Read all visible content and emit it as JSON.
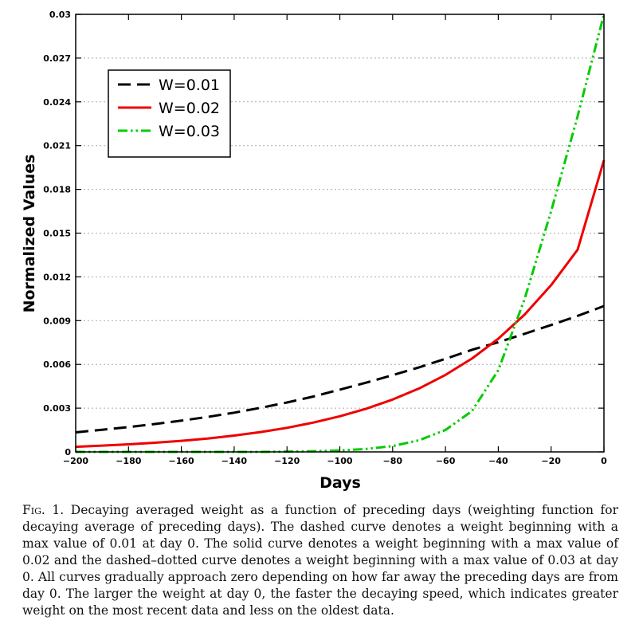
{
  "chart_data": {
    "type": "line",
    "title": "",
    "xlabel": "Days",
    "ylabel": "Normalized Values",
    "xlim": [
      -200,
      0
    ],
    "ylim": [
      0,
      0.03
    ],
    "x_ticks": [
      -200,
      -180,
      -160,
      -140,
      -120,
      -100,
      -80,
      -60,
      -40,
      -20,
      0
    ],
    "x_tick_labels": [
      "−200",
      "−180",
      "−160",
      "−140",
      "−120",
      "−100",
      "−80",
      "−60",
      "−40",
      "−20",
      "0"
    ],
    "y_ticks": [
      0,
      0.003,
      0.006,
      0.009,
      0.012,
      0.015,
      0.018,
      0.021,
      0.024,
      0.027,
      0.03
    ],
    "y_tick_labels": [
      "0",
      "0.003",
      "0.006",
      "0.009",
      "0.012",
      "0.015",
      "0.018",
      "0.021",
      "0.024",
      "0.027",
      "0.03"
    ],
    "grid": true,
    "legend_position": "top-left",
    "x": [
      -200,
      -190,
      -180,
      -170,
      -160,
      -150,
      -140,
      -130,
      -120,
      -110,
      -100,
      -90,
      -80,
      -70,
      -60,
      -50,
      -40,
      -30,
      -20,
      -10,
      0
    ],
    "series": [
      {
        "name": "W=0.01",
        "color": "#000000",
        "style": "dashed",
        "values": [
          0.00134,
          0.00152,
          0.0017,
          0.00191,
          0.00214,
          0.0024,
          0.00269,
          0.00302,
          0.00339,
          0.0038,
          0.00427,
          0.00475,
          0.00526,
          0.0058,
          0.00638,
          0.007,
          0.00752,
          0.0081,
          0.0087,
          0.00932,
          0.01
        ]
      },
      {
        "name": "W=0.02",
        "color": "#ee0000",
        "style": "solid",
        "values": [
          0.00035,
          0.00043,
          0.00052,
          0.00063,
          0.00076,
          0.00092,
          0.00112,
          0.00136,
          0.00165,
          0.00201,
          0.00244,
          0.00296,
          0.00359,
          0.00435,
          0.00528,
          0.0064,
          0.00776,
          0.00942,
          0.01143,
          0.01386,
          0.02
        ]
      },
      {
        "name": "W=0.03",
        "color": "#00cc00",
        "style": "dash-dot-dot",
        "values": [
          0.0,
          0.0,
          0.0,
          0.0,
          0.0,
          0.0,
          0.0,
          0.0,
          2e-05,
          5e-05,
          0.0001,
          0.0002,
          0.0004,
          0.0008,
          0.0015,
          0.0028,
          0.0056,
          0.0105,
          0.0165,
          0.023,
          0.03
        ]
      }
    ]
  },
  "caption": {
    "fig_label": "Fig. 1.",
    "text": "Decaying averaged weight as a function of preceding days (weighting function for decaying average of preceding days). The dashed curve denotes a weight beginning with a max value of 0.01 at day 0. The solid curve denotes a weight beginning with a max value of 0.02 and the dashed–dotted curve denotes a weight beginning with a max value of 0.03 at day 0. All curves gradually approach zero depending on how far away the preceding days are from day 0. The larger the weight at day 0, the faster the decaying speed, which indicates greater weight on the most recent data and less on the oldest data."
  }
}
